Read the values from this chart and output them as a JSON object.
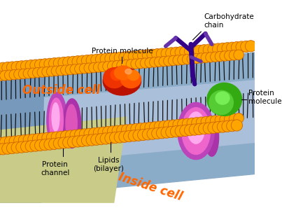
{
  "bg_color": "#ffffff",
  "outside_cell_text": "Outside cell",
  "inside_cell_text": "Inside cell",
  "labels": {
    "protein_molecule_top": "Protein molecule",
    "carbohydrate_chain": "Carbohydrate\nchain",
    "protein_molecule_right": "Protein\nmolecule",
    "protein_channel": "Protein\nchannel",
    "lipids_bilayer": "Lipids\n(bilayer)"
  },
  "orange_color": "#FFA500",
  "orange_dark": "#CC6600",
  "outside_cell_color": "#FF6600",
  "inside_cell_color": "#FF6600",
  "carbo_color": "#330088",
  "channel_pink": "#FF77CC",
  "channel_purple": "#BB44BB",
  "label_color": "#000000",
  "membrane_blue1": "#7799BB",
  "membrane_blue2": "#AABBD0",
  "membrane_yellow": "#DDCC77",
  "protein_green": "#44BB22"
}
